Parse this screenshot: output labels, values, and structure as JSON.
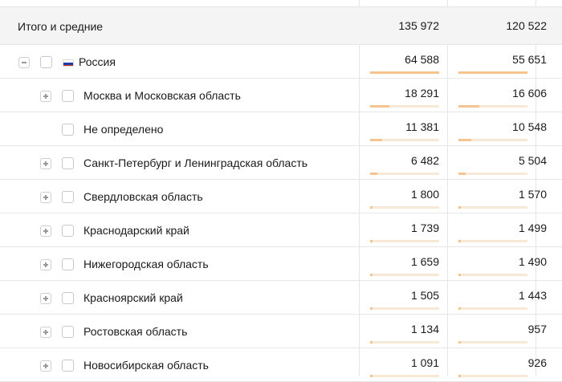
{
  "totals": {
    "label": "Итого и средние",
    "col1": "135 972",
    "col2": "120 522"
  },
  "rows": [
    {
      "label": "Россия",
      "col1": "64 588",
      "col2": "55 651",
      "share1": 1.0,
      "share2": 1.0,
      "toggle": "minus",
      "flag": true
    },
    {
      "label": "Москва и Московская область",
      "col1": "18 291",
      "col2": "16 606",
      "share1": 0.283,
      "share2": 0.298,
      "toggle": "plus"
    },
    {
      "label": "Не определено",
      "col1": "11 381",
      "col2": "10 548",
      "share1": 0.176,
      "share2": 0.19,
      "toggle": "none"
    },
    {
      "label": "Санкт-Петербург и Ленинградская область",
      "col1": "6 482",
      "col2": "5 504",
      "share1": 0.1,
      "share2": 0.099,
      "toggle": "plus"
    },
    {
      "label": "Свердловская область",
      "col1": "1 800",
      "col2": "1 570",
      "share1": 0.028,
      "share2": 0.028,
      "toggle": "plus"
    },
    {
      "label": "Краснодарский край",
      "col1": "1 739",
      "col2": "1 499",
      "share1": 0.027,
      "share2": 0.027,
      "toggle": "plus"
    },
    {
      "label": "Нижегородская область",
      "col1": "1 659",
      "col2": "1 490",
      "share1": 0.026,
      "share2": 0.027,
      "toggle": "plus"
    },
    {
      "label": "Красноярский край",
      "col1": "1 505",
      "col2": "1 443",
      "share1": 0.023,
      "share2": 0.026,
      "toggle": "plus"
    },
    {
      "label": "Ростовская область",
      "col1": "1 134",
      "col2": "957",
      "share1": 0.018,
      "share2": 0.017,
      "toggle": "plus"
    },
    {
      "label": "Новосибирская область",
      "col1": "1 091",
      "col2": "926",
      "share1": 0.017,
      "share2": 0.017,
      "toggle": "plus"
    }
  ],
  "colors": {
    "bar_fill": "#f6c48e",
    "bar_track": "#f8e9d6",
    "totals_bg": "#f4f4f4",
    "flag": [
      "#ffffff",
      "#1c3fa8",
      "#d52b1e"
    ]
  },
  "icons": {
    "expand": "plus-icon",
    "collapse": "minus-icon",
    "flag": "russia-flag-icon"
  }
}
